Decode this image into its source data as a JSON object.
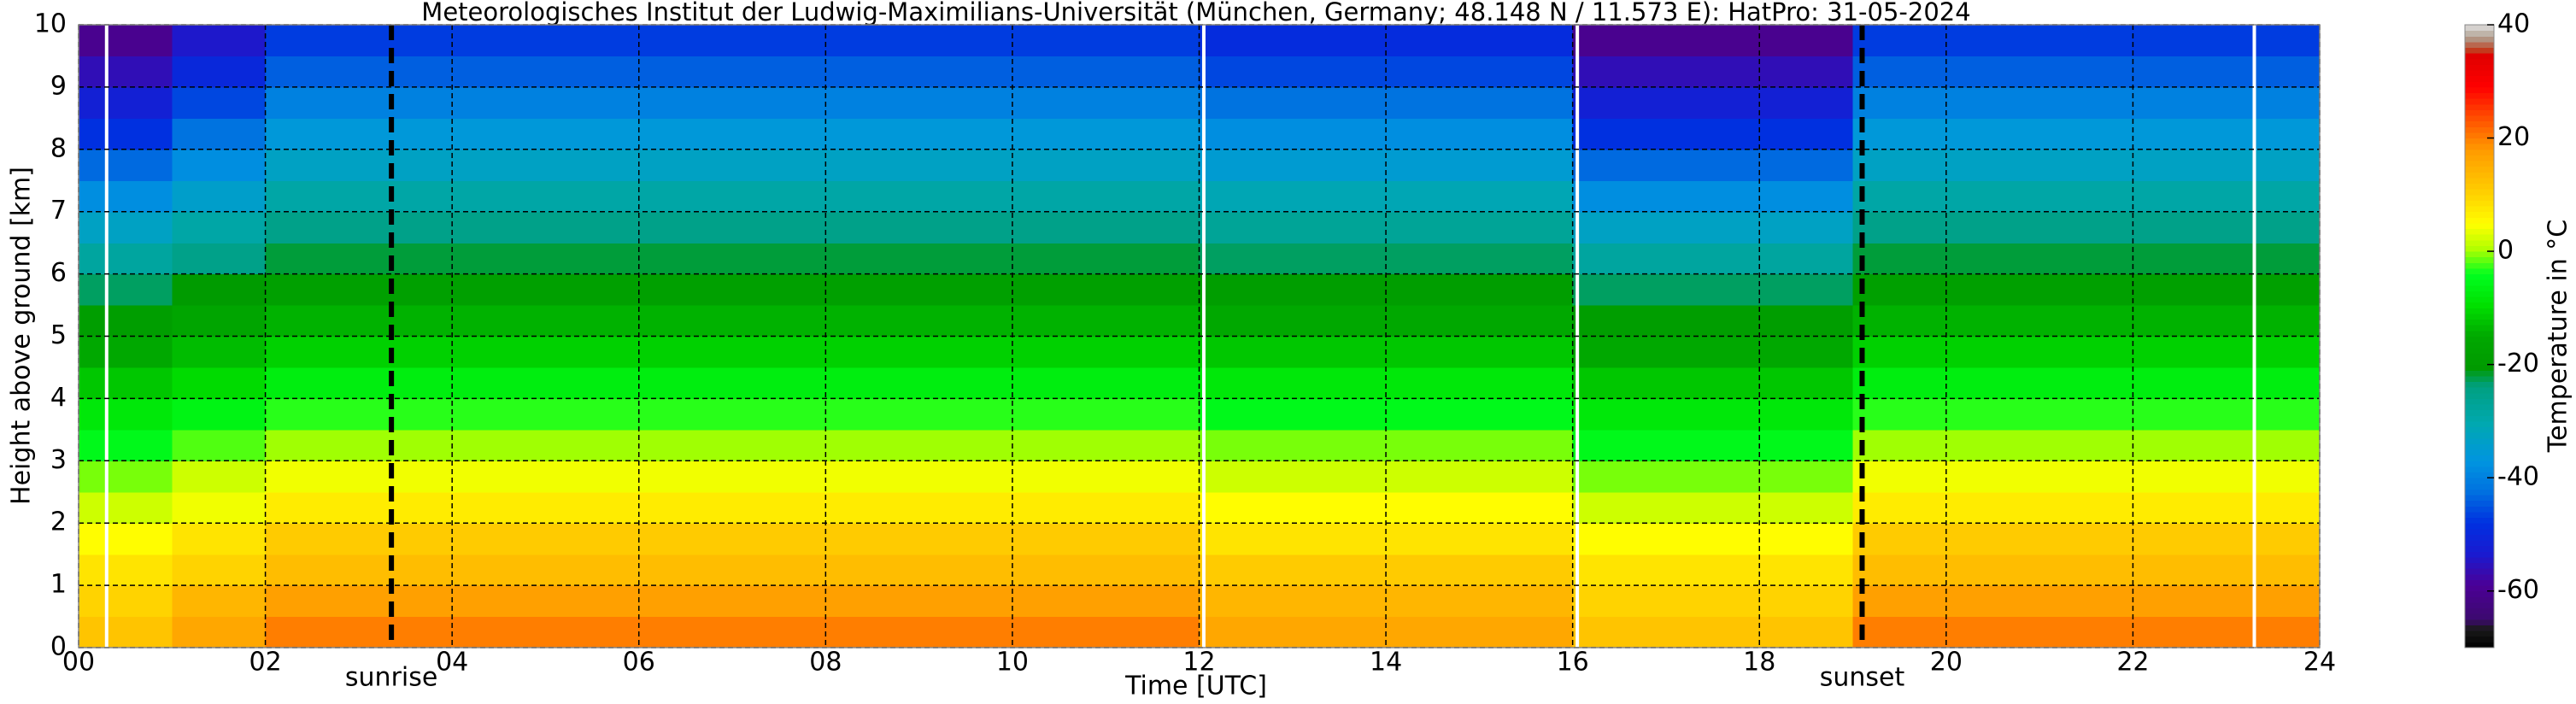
{
  "chart_data": {
    "type": "heatmap",
    "title": "Meteorologisches Institut der Ludwig-Maximilians-Universität (München, Germany; 48.148 N / 11.573 E):    HatPro: 31-05-2024",
    "xlabel": "Time [UTC]",
    "ylabel": "Height above ground [km]",
    "colorbar_label": "Temperature in °C",
    "xlim": [
      0,
      24
    ],
    "ylim": [
      0,
      10
    ],
    "xticks": [
      {
        "value": 0,
        "label": "00"
      },
      {
        "value": 2,
        "label": "02"
      },
      {
        "value": 4,
        "label": "04"
      },
      {
        "value": 6,
        "label": "06"
      },
      {
        "value": 8,
        "label": "08"
      },
      {
        "value": 10,
        "label": "10"
      },
      {
        "value": 12,
        "label": "12"
      },
      {
        "value": 14,
        "label": "14"
      },
      {
        "value": 16,
        "label": "16"
      },
      {
        "value": 18,
        "label": "18"
      },
      {
        "value": 20,
        "label": "20"
      },
      {
        "value": 22,
        "label": "22"
      },
      {
        "value": 24,
        "label": "24"
      }
    ],
    "yticks": [
      0,
      1,
      2,
      3,
      4,
      5,
      6,
      7,
      8,
      9,
      10
    ],
    "clim": [
      -70,
      40
    ],
    "cticks": [
      -60,
      -40,
      -20,
      0,
      20,
      40
    ],
    "grid": true,
    "xbins": [
      0,
      1,
      2,
      3,
      4,
      5,
      6,
      7,
      8,
      9,
      10,
      11,
      12,
      13,
      14,
      15,
      16,
      17,
      18,
      19,
      20,
      21,
      22,
      23,
      24
    ],
    "ybins": [
      0,
      0.5,
      1,
      1.5,
      2,
      2.5,
      3,
      3.5,
      4,
      4.5,
      5,
      5.5,
      6,
      6.5,
      7,
      7.5,
      8,
      8.5,
      9,
      9.5,
      10
    ],
    "z": [
      [
        12,
        16,
        20,
        20,
        20,
        20,
        20,
        20,
        20,
        20,
        20,
        20,
        16,
        16,
        16,
        16,
        12,
        12,
        12,
        20,
        20,
        20,
        20,
        20
      ],
      [
        10,
        14,
        17,
        17,
        17,
        17,
        17,
        17,
        17,
        17,
        17,
        17,
        14,
        14,
        14,
        14,
        10,
        10,
        10,
        17,
        17,
        17,
        17,
        17
      ],
      [
        8,
        10,
        13,
        13,
        13,
        13,
        13,
        13,
        13,
        13,
        13,
        13,
        11,
        11,
        11,
        11,
        8,
        8,
        8,
        13,
        13,
        13,
        13,
        13
      ],
      [
        5,
        8,
        11,
        11,
        11,
        11,
        11,
        11,
        11,
        11,
        11,
        11,
        8,
        8,
        8,
        8,
        5,
        5,
        5,
        11,
        11,
        11,
        11,
        11
      ],
      [
        2,
        4,
        7,
        7,
        7,
        7,
        7,
        7,
        7,
        7,
        7,
        7,
        5,
        5,
        5,
        5,
        2,
        2,
        2,
        7,
        7,
        7,
        7,
        7
      ],
      [
        -1,
        2,
        4,
        4,
        4,
        4,
        4,
        4,
        4,
        4,
        4,
        4,
        2,
        2,
        2,
        2,
        -1,
        -1,
        -1,
        4,
        4,
        4,
        4,
        4
      ],
      [
        -5,
        -2,
        0,
        0,
        0,
        0,
        0,
        0,
        0,
        0,
        0,
        0,
        -1,
        -1,
        -1,
        -1,
        -5,
        -5,
        -5,
        0,
        0,
        0,
        0,
        0
      ],
      [
        -8,
        -6,
        -3,
        -3,
        -3,
        -3,
        -3,
        -3,
        -3,
        -3,
        -3,
        -3,
        -5,
        -5,
        -5,
        -5,
        -8,
        -8,
        -8,
        -3,
        -3,
        -3,
        -3,
        -3
      ],
      [
        -12,
        -10,
        -7,
        -7,
        -7,
        -7,
        -7,
        -7,
        -7,
        -7,
        -7,
        -7,
        -8,
        -8,
        -8,
        -8,
        -12,
        -12,
        -12,
        -7,
        -7,
        -7,
        -7,
        -7
      ],
      [
        -15,
        -13,
        -11,
        -11,
        -11,
        -11,
        -11,
        -11,
        -11,
        -11,
        -11,
        -11,
        -12,
        -12,
        -12,
        -12,
        -15,
        -15,
        -15,
        -11,
        -11,
        -11,
        -11,
        -11
      ],
      [
        -19,
        -16,
        -14,
        -14,
        -14,
        -14,
        -14,
        -14,
        -14,
        -14,
        -14,
        -14,
        -15,
        -15,
        -15,
        -15,
        -19,
        -19,
        -19,
        -14,
        -14,
        -14,
        -14,
        -14
      ],
      [
        -23,
        -20,
        -18,
        -18,
        -18,
        -18,
        -18,
        -18,
        -18,
        -18,
        -18,
        -18,
        -19,
        -19,
        -19,
        -19,
        -23,
        -23,
        -23,
        -18,
        -18,
        -18,
        -18,
        -18
      ],
      [
        -28,
        -25,
        -22,
        -22,
        -22,
        -22,
        -22,
        -22,
        -22,
        -22,
        -22,
        -22,
        -23,
        -23,
        -23,
        -23,
        -28,
        -28,
        -28,
        -22,
        -22,
        -22,
        -22,
        -22
      ],
      [
        -33,
        -29,
        -25,
        -25,
        -25,
        -25,
        -25,
        -25,
        -25,
        -25,
        -25,
        -25,
        -27,
        -27,
        -27,
        -27,
        -33,
        -33,
        -33,
        -25,
        -25,
        -25,
        -25,
        -25
      ],
      [
        -38,
        -34,
        -29,
        -29,
        -29,
        -29,
        -29,
        -29,
        -29,
        -29,
        -29,
        -29,
        -31,
        -31,
        -31,
        -31,
        -38,
        -38,
        -38,
        -29,
        -29,
        -29,
        -29,
        -29
      ],
      [
        -43,
        -38,
        -33,
        -33,
        -33,
        -33,
        -33,
        -33,
        -33,
        -33,
        -33,
        -33,
        -35,
        -35,
        -35,
        -35,
        -43,
        -43,
        -43,
        -33,
        -33,
        -33,
        -33,
        -33
      ],
      [
        -48,
        -42,
        -36,
        -36,
        -36,
        -36,
        -36,
        -36,
        -36,
        -36,
        -36,
        -36,
        -38,
        -38,
        -38,
        -38,
        -48,
        -48,
        -48,
        -36,
        -36,
        -36,
        -36,
        -36
      ],
      [
        -52,
        -46,
        -40,
        -40,
        -40,
        -40,
        -40,
        -40,
        -40,
        -40,
        -40,
        -40,
        -42,
        -42,
        -42,
        -42,
        -52,
        -52,
        -52,
        -40,
        -40,
        -40,
        -40,
        -40
      ],
      [
        -56,
        -50,
        -44,
        -44,
        -44,
        -44,
        -44,
        -44,
        -44,
        -44,
        -44,
        -44,
        -46,
        -46,
        -46,
        -46,
        -56,
        -56,
        -56,
        -44,
        -44,
        -44,
        -44,
        -44
      ],
      [
        -60,
        -54,
        -47,
        -47,
        -47,
        -47,
        -47,
        -47,
        -47,
        -47,
        -47,
        -47,
        -49,
        -49,
        -49,
        -49,
        -60,
        -60,
        -60,
        -47,
        -47,
        -47,
        -47,
        -47
      ]
    ],
    "gaps_x": [
      0.3,
      12.05,
      16.05,
      23.3
    ],
    "annotations": [
      {
        "label": "sunrise",
        "x": 3.35
      },
      {
        "label": "sunset",
        "x": 19.1
      }
    ]
  }
}
